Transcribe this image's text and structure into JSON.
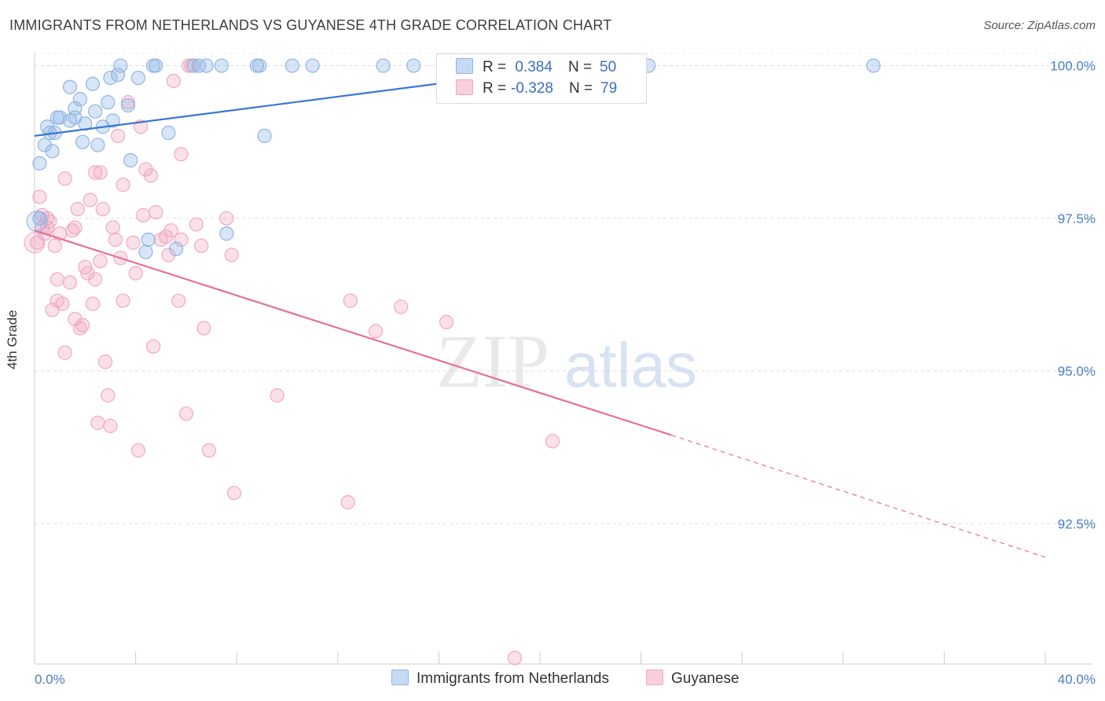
{
  "title": "IMMIGRANTS FROM NETHERLANDS VS GUYANESE 4TH GRADE CORRELATION CHART",
  "source": "Source: ZipAtlas.com",
  "colors": {
    "blue": "#8fb4e6",
    "blue_line": "#3a76d2",
    "pink": "#f2a8c1",
    "pink_line": "#e56f98",
    "tick": "#4a7cc4",
    "grid": "#dddddd"
  },
  "legend": {
    "series1": {
      "r_label": "R =",
      "r_value": " 0.384",
      "n_label": "N =",
      "n_value": "50"
    },
    "series2": {
      "r_label": "R =",
      "r_value": "-0.328",
      "n_label": "N =",
      "n_value": "79"
    }
  },
  "bottom_legend": {
    "series1": "Immigrants from Netherlands",
    "series2": "Guyanese"
  },
  "chart_data": {
    "type": "scatter",
    "ylabel": "4th Grade",
    "xlim": [
      0,
      40
    ],
    "ylim": [
      90.2,
      100.2
    ],
    "x_tick_labels": [
      "0.0%",
      "40.0%"
    ],
    "y_ticks": [
      92.5,
      95.0,
      97.5,
      100.0
    ],
    "y_tick_labels": [
      "92.5%",
      "95.0%",
      "97.5%",
      "100.0%"
    ],
    "grid": true,
    "legend_position": "top-center",
    "series": [
      {
        "name": "Immigrants from Netherlands",
        "color": "#8fb4e6",
        "trend": {
          "x": [
            0,
            21.5
          ],
          "y": [
            98.85,
            100.0
          ]
        },
        "points": [
          [
            0.2,
            98.4
          ],
          [
            0.2,
            97.5
          ],
          [
            0.4,
            98.7
          ],
          [
            0.5,
            99.0
          ],
          [
            0.6,
            98.9
          ],
          [
            0.7,
            98.6
          ],
          [
            0.8,
            98.9
          ],
          [
            0.9,
            99.15
          ],
          [
            1.0,
            99.15
          ],
          [
            1.4,
            99.1
          ],
          [
            1.4,
            99.65
          ],
          [
            1.6,
            99.3
          ],
          [
            1.6,
            99.15
          ],
          [
            1.8,
            99.45
          ],
          [
            1.9,
            98.75
          ],
          [
            2.0,
            99.05
          ],
          [
            2.3,
            99.7
          ],
          [
            2.4,
            99.25
          ],
          [
            2.5,
            98.7
          ],
          [
            2.7,
            99.0
          ],
          [
            2.9,
            99.4
          ],
          [
            3.0,
            99.8
          ],
          [
            3.1,
            99.1
          ],
          [
            3.3,
            99.85
          ],
          [
            3.4,
            100.0
          ],
          [
            3.7,
            99.35
          ],
          [
            3.8,
            98.45
          ],
          [
            4.1,
            99.8
          ],
          [
            4.4,
            96.95
          ],
          [
            4.5,
            97.15
          ],
          [
            4.7,
            100.0
          ],
          [
            4.8,
            100.0
          ],
          [
            5.3,
            98.9
          ],
          [
            5.6,
            97.0
          ],
          [
            6.3,
            100.0
          ],
          [
            6.5,
            100.0
          ],
          [
            6.8,
            100.0
          ],
          [
            7.4,
            100.0
          ],
          [
            7.6,
            97.25
          ],
          [
            8.8,
            100.0
          ],
          [
            8.9,
            100.0
          ],
          [
            9.1,
            98.85
          ],
          [
            10.2,
            100.0
          ],
          [
            11.0,
            100.0
          ],
          [
            13.8,
            100.0
          ],
          [
            15.0,
            100.0
          ],
          [
            16.2,
            100.0
          ],
          [
            18.5,
            100.0
          ],
          [
            24.3,
            100.0
          ],
          [
            33.2,
            100.0
          ]
        ]
      },
      {
        "name": "Guyanese",
        "color": "#f2a8c1",
        "trend": {
          "x": [
            0,
            25.2
          ],
          "y": [
            97.3,
            93.95
          ]
        },
        "trend_dashed": {
          "x": [
            25.2,
            40
          ],
          "y": [
            93.95,
            91.95
          ]
        },
        "points": [
          [
            0.1,
            97.1
          ],
          [
            0.2,
            97.85
          ],
          [
            0.3,
            97.55
          ],
          [
            0.3,
            97.35
          ],
          [
            0.4,
            97.25
          ],
          [
            0.5,
            97.5
          ],
          [
            0.5,
            97.35
          ],
          [
            0.6,
            97.45
          ],
          [
            0.7,
            96.0
          ],
          [
            0.8,
            97.05
          ],
          [
            0.9,
            96.15
          ],
          [
            0.9,
            96.5
          ],
          [
            1.0,
            97.25
          ],
          [
            1.1,
            96.1
          ],
          [
            1.2,
            98.15
          ],
          [
            1.2,
            95.3
          ],
          [
            1.4,
            96.45
          ],
          [
            1.5,
            97.3
          ],
          [
            1.6,
            95.85
          ],
          [
            1.6,
            97.35
          ],
          [
            1.7,
            97.65
          ],
          [
            1.8,
            95.7
          ],
          [
            1.9,
            95.75
          ],
          [
            2.0,
            96.7
          ],
          [
            2.1,
            96.6
          ],
          [
            2.2,
            97.8
          ],
          [
            2.3,
            96.1
          ],
          [
            2.4,
            98.25
          ],
          [
            2.4,
            96.5
          ],
          [
            2.5,
            94.15
          ],
          [
            2.6,
            98.25
          ],
          [
            2.6,
            96.8
          ],
          [
            2.7,
            97.65
          ],
          [
            2.8,
            95.15
          ],
          [
            2.9,
            94.6
          ],
          [
            3.0,
            94.1
          ],
          [
            3.1,
            97.35
          ],
          [
            3.2,
            97.15
          ],
          [
            3.3,
            98.85
          ],
          [
            3.4,
            96.85
          ],
          [
            3.5,
            98.05
          ],
          [
            3.5,
            96.15
          ],
          [
            3.7,
            99.4
          ],
          [
            3.9,
            97.1
          ],
          [
            4.0,
            96.6
          ],
          [
            4.1,
            93.7
          ],
          [
            4.2,
            99.0
          ],
          [
            4.3,
            97.55
          ],
          [
            4.4,
            98.3
          ],
          [
            4.6,
            98.2
          ],
          [
            4.7,
            95.4
          ],
          [
            4.8,
            97.6
          ],
          [
            5.0,
            97.15
          ],
          [
            5.2,
            97.2
          ],
          [
            5.3,
            96.9
          ],
          [
            5.4,
            97.3
          ],
          [
            5.5,
            99.75
          ],
          [
            5.7,
            96.15
          ],
          [
            5.8,
            97.15
          ],
          [
            5.8,
            98.55
          ],
          [
            6.0,
            94.3
          ],
          [
            6.1,
            100.0
          ],
          [
            6.2,
            100.0
          ],
          [
            6.4,
            97.4
          ],
          [
            6.6,
            97.05
          ],
          [
            6.7,
            95.7
          ],
          [
            6.9,
            93.7
          ],
          [
            7.6,
            97.5
          ],
          [
            7.8,
            96.9
          ],
          [
            7.9,
            93.0
          ],
          [
            9.6,
            94.6
          ],
          [
            12.4,
            92.85
          ],
          [
            12.5,
            96.15
          ],
          [
            13.5,
            95.65
          ],
          [
            16.2,
            100.0
          ],
          [
            16.3,
            95.8
          ],
          [
            20.5,
            93.85
          ],
          [
            19.0,
            90.3
          ],
          [
            14.5,
            96.05
          ]
        ]
      }
    ]
  }
}
